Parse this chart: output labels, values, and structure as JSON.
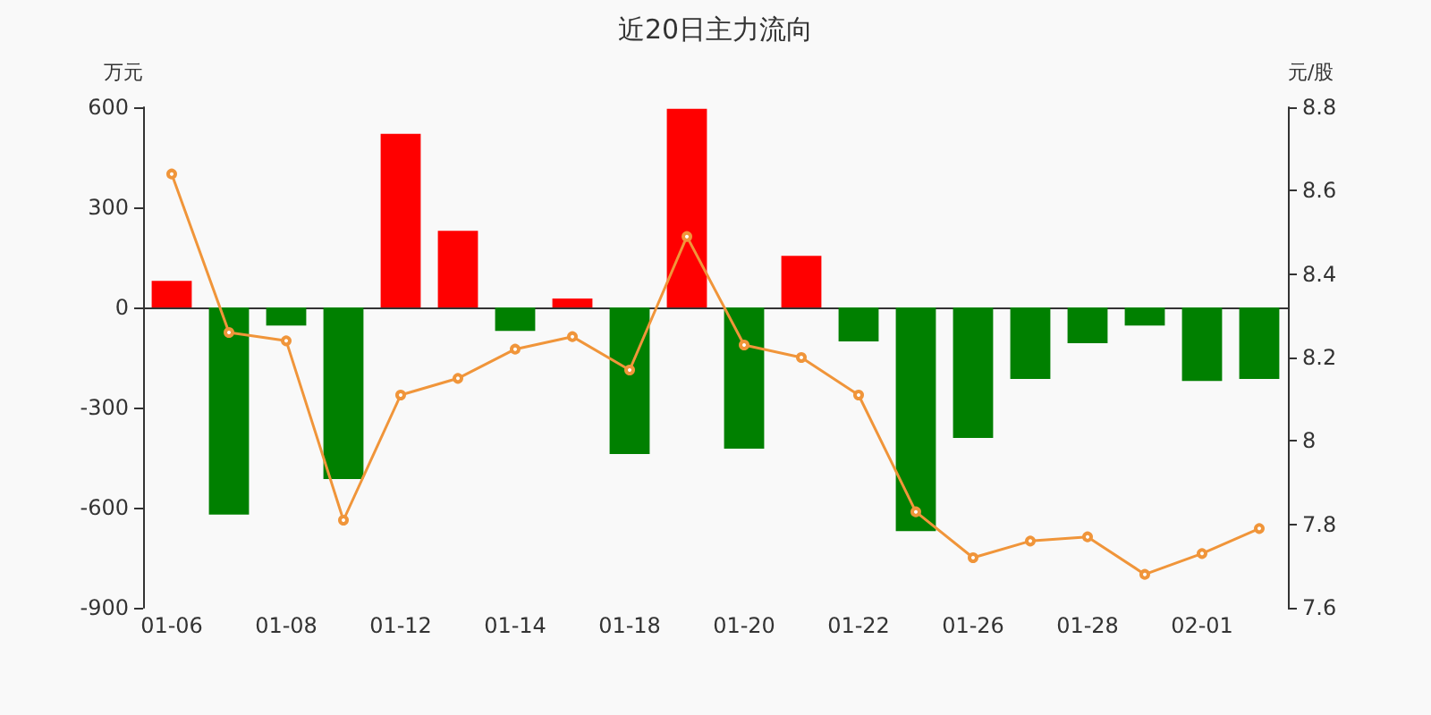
{
  "chart_data": {
    "type": "bar",
    "title": "近20日主力流向",
    "ylabel": "万元",
    "y2label": "元/股",
    "categories": [
      "01-06",
      null,
      "01-08",
      null,
      "01-12",
      null,
      "01-14",
      null,
      "01-18",
      null,
      "01-20",
      null,
      "01-22",
      null,
      "01-26",
      null,
      "01-28",
      null,
      "02-01",
      null
    ],
    "series": [
      {
        "values": [
          80,
          -621,
          -54,
          -514,
          520,
          230,
          -70,
          27,
          -439,
          595,
          -423,
          155,
          -102,
          -670,
          -391,
          -214,
          -107,
          -54,
          -220,
          -214
        ],
        "colors": [
          "#ff0000",
          "#008000",
          "#008000",
          "#008000",
          "#ff0000",
          "#ff0000",
          "#008000",
          "#ff0000",
          "#008000",
          "#ff0000",
          "#008000",
          "#ff0000",
          "#008000",
          "#008000",
          "#008000",
          "#008000",
          "#008000",
          "#008000",
          "#008000",
          "#008000"
        ]
      },
      {
        "type": "line",
        "axis": "y2",
        "color": "#f0953a",
        "marker": "circle",
        "values": [
          8.64,
          8.26,
          8.24,
          7.81,
          8.11,
          8.15,
          8.22,
          8.25,
          8.17,
          8.49,
          8.23,
          8.2,
          8.11,
          7.83,
          7.72,
          7.76,
          7.77,
          7.68,
          7.73,
          7.79
        ]
      }
    ],
    "ylim": [
      -900,
      600
    ],
    "yticks": [
      -900,
      -600,
      -300,
      0,
      300,
      600
    ],
    "y2lim": [
      7.6,
      8.8
    ],
    "y2ticks": [
      7.6,
      7.8,
      8,
      8.2,
      8.4,
      8.6,
      8.8
    ]
  }
}
